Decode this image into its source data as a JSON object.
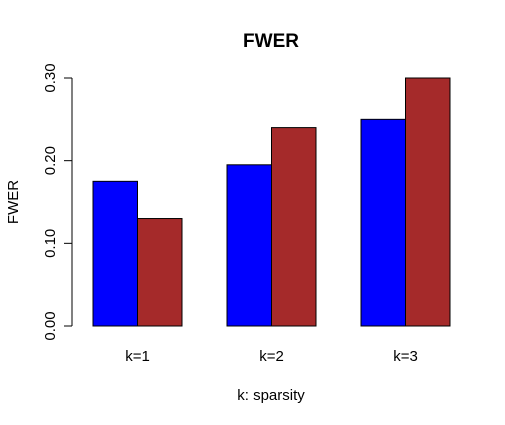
{
  "chart_data": {
    "type": "bar",
    "title": "FWER",
    "xlabel": "k: sparsity",
    "ylabel": "FWER",
    "categories": [
      "k=1",
      "k=2",
      "k=3"
    ],
    "series": [
      {
        "values": [
          0.175,
          0.195,
          0.25
        ],
        "color": "#0000ff"
      },
      {
        "values": [
          0.13,
          0.24,
          0.3
        ],
        "color": "#a52a2a"
      }
    ],
    "ylim": [
      0,
      0.3
    ],
    "yticks": [
      "0.00",
      "0.10",
      "0.20",
      "0.30"
    ],
    "grid": false,
    "legend": "none"
  }
}
